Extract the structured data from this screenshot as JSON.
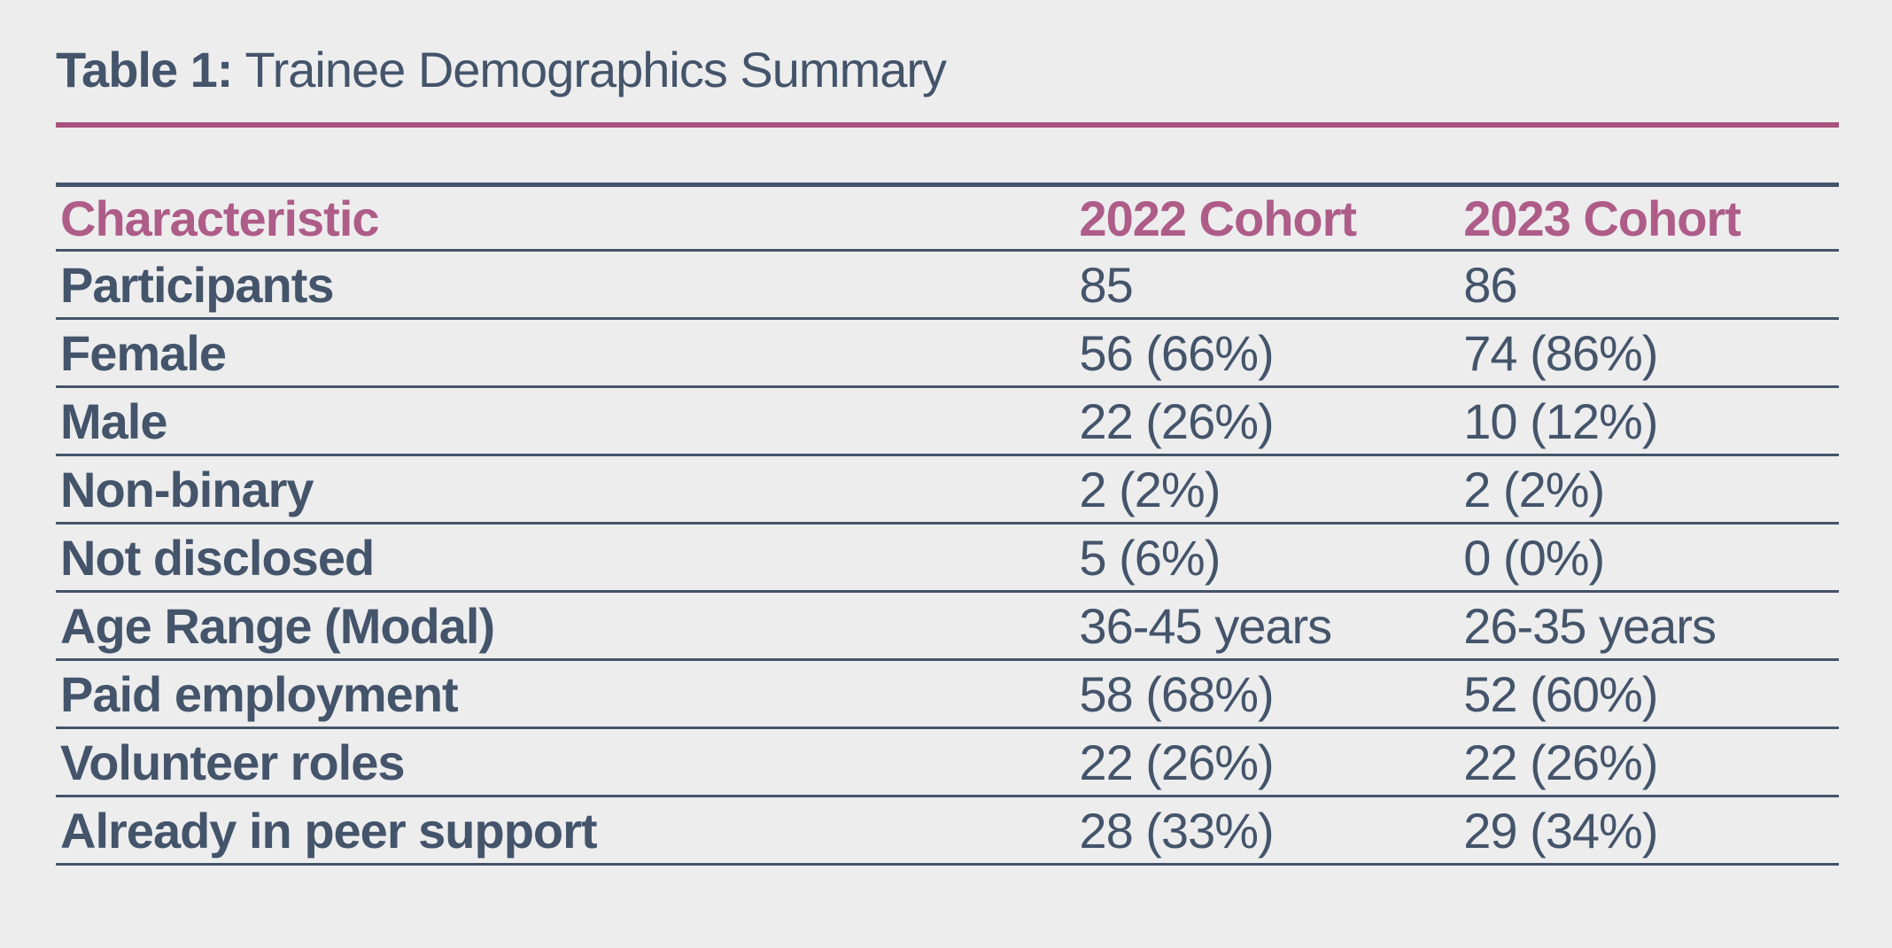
{
  "colors": {
    "navy": "#44546A",
    "pink_text": "#AE5C88",
    "pink_rule": "#A9527E",
    "background": "#EDEDEE"
  },
  "title": {
    "prefix": "Table 1:",
    "rest": "Trainee Demographics Summary"
  },
  "table": {
    "columns": [
      "Characteristic",
      "2022 Cohort",
      "2023 Cohort"
    ],
    "rows": [
      {
        "label": "Participants",
        "values": [
          "85",
          "86"
        ]
      },
      {
        "label": "Female",
        "values": [
          "56 (66%)",
          "74 (86%)"
        ]
      },
      {
        "label": "Male",
        "values": [
          "22 (26%)",
          "10 (12%)"
        ]
      },
      {
        "label": "Non-binary",
        "values": [
          "2 (2%)",
          "2 (2%)"
        ]
      },
      {
        "label": "Not disclosed",
        "values": [
          "5 (6%)",
          "0 (0%)"
        ]
      },
      {
        "label": "Age Range (Modal)",
        "values": [
          "36-45 years",
          "26-35 years"
        ]
      },
      {
        "label": "Paid employment",
        "values": [
          "58 (68%)",
          "52 (60%)"
        ]
      },
      {
        "label": "Volunteer roles",
        "values": [
          "22 (26%)",
          "22 (26%)"
        ]
      },
      {
        "label": "Already in peer support",
        "values": [
          "28 (33%)",
          "29 (34%)"
        ]
      }
    ]
  }
}
